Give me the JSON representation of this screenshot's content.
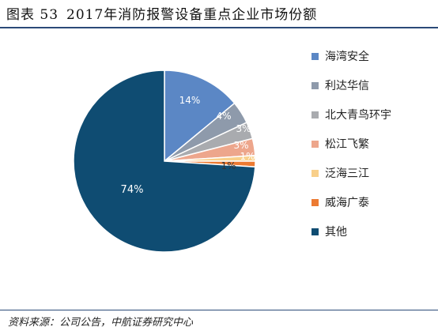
{
  "figure": {
    "number": "图表 53",
    "title": "2017年消防报警设备重点企业市场份额",
    "source": "资料来源：公司公告，中航证券研究中心"
  },
  "chart_data": {
    "type": "pie",
    "title": "2017年消防报警设备重点企业市场份额",
    "labels": [
      "海湾安全",
      "利达华信",
      "北大青鸟环宇",
      "松江飞繁",
      "泛海三江",
      "威海广泰",
      "其他"
    ],
    "values": [
      14,
      4,
      3,
      3,
      1,
      1,
      74
    ],
    "data_labels": [
      "14%",
      "4%",
      "3%",
      "3%",
      "1%",
      "1%",
      "74%"
    ],
    "colors": [
      "#5b87c5",
      "#8e9aab",
      "#a9abaf",
      "#eda68c",
      "#f8cf8a",
      "#ec7a32",
      "#0f4c72"
    ],
    "legend_position": "right"
  }
}
